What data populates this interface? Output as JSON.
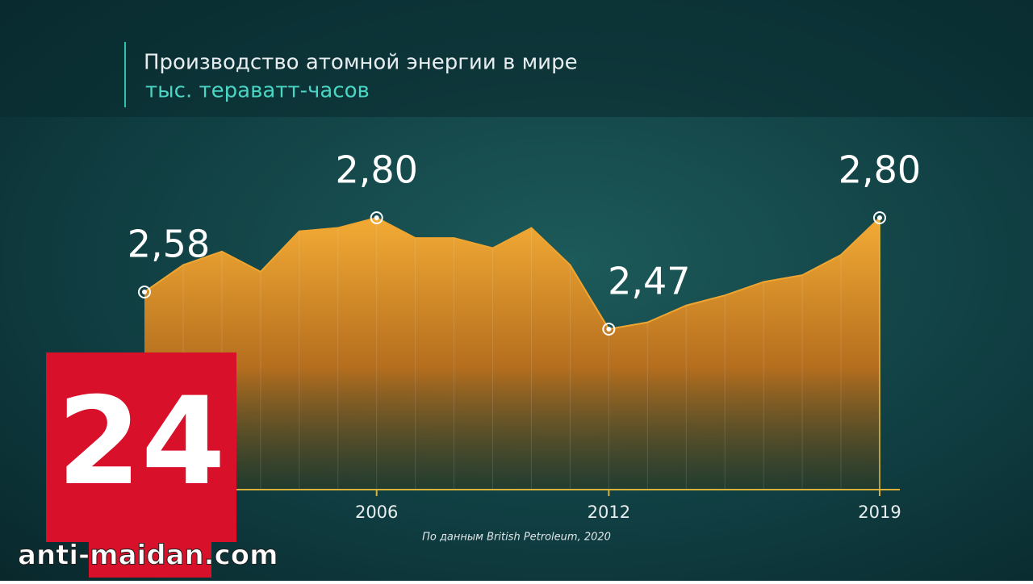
{
  "chart_data": {
    "type": "area",
    "title": "Производство атомной энергии в мире",
    "subtitle": "тыс. тераватт-часов",
    "source": "По данным British Petroleum, 2020",
    "logo": "24",
    "watermark": "anti-maidan.com",
    "categories": [
      null,
      null,
      null,
      null,
      null,
      null,
      "2006",
      null,
      null,
      null,
      null,
      null,
      "2012",
      null,
      null,
      null,
      null,
      null,
      null,
      "2019"
    ],
    "values": [
      2.58,
      2.66,
      2.7,
      2.64,
      2.76,
      2.77,
      2.8,
      2.74,
      2.74,
      2.71,
      2.77,
      2.66,
      2.47,
      2.49,
      2.54,
      2.57,
      2.61,
      2.63,
      2.69,
      2.8
    ],
    "value_labels": [
      "2,58",
      null,
      null,
      null,
      null,
      null,
      "2,80",
      null,
      null,
      null,
      null,
      null,
      "2,47",
      null,
      null,
      null,
      null,
      null,
      null,
      "2,80"
    ],
    "color": "#f0a530"
  }
}
